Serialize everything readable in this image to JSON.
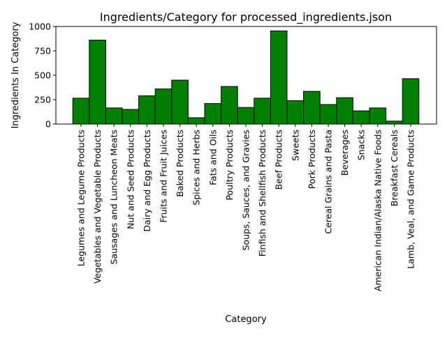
{
  "chart_data": {
    "type": "bar",
    "title": "Ingredients/Category for processed_ingredients.json",
    "xlabel": "Category",
    "ylabel": "Ingredients In Category",
    "ylim": [
      0,
      1000
    ],
    "yticks": [
      0,
      250,
      500,
      750,
      1000
    ],
    "grid": false,
    "bar_color": "#008000",
    "bar_edge_color": "#000000",
    "categories": [
      "Legumes and Legume Products",
      "Vegetables and Vegetable Products",
      "Sausages and Luncheon Meats",
      "Nut and Seed Products",
      "Dairy and Egg Products",
      "Fruits and Fruit Juices",
      "Baked Products",
      "Spices and Herbs",
      "Fats and Oils",
      "Poultry Products",
      "Soups, Sauces, and Gravies",
      "Finfish and Shellfish Products",
      "Beef Products",
      "Sweets",
      "Pork Products",
      "Cereal Grains and Pasta",
      "Beverages",
      "Snacks",
      "American Indian/Alaska Native Foods",
      "Breakfast Cereals",
      "Lamb, Veal, and Game Products"
    ],
    "values": [
      265,
      860,
      165,
      150,
      290,
      360,
      450,
      65,
      210,
      385,
      170,
      265,
      955,
      240,
      335,
      200,
      270,
      135,
      165,
      30,
      465
    ]
  }
}
